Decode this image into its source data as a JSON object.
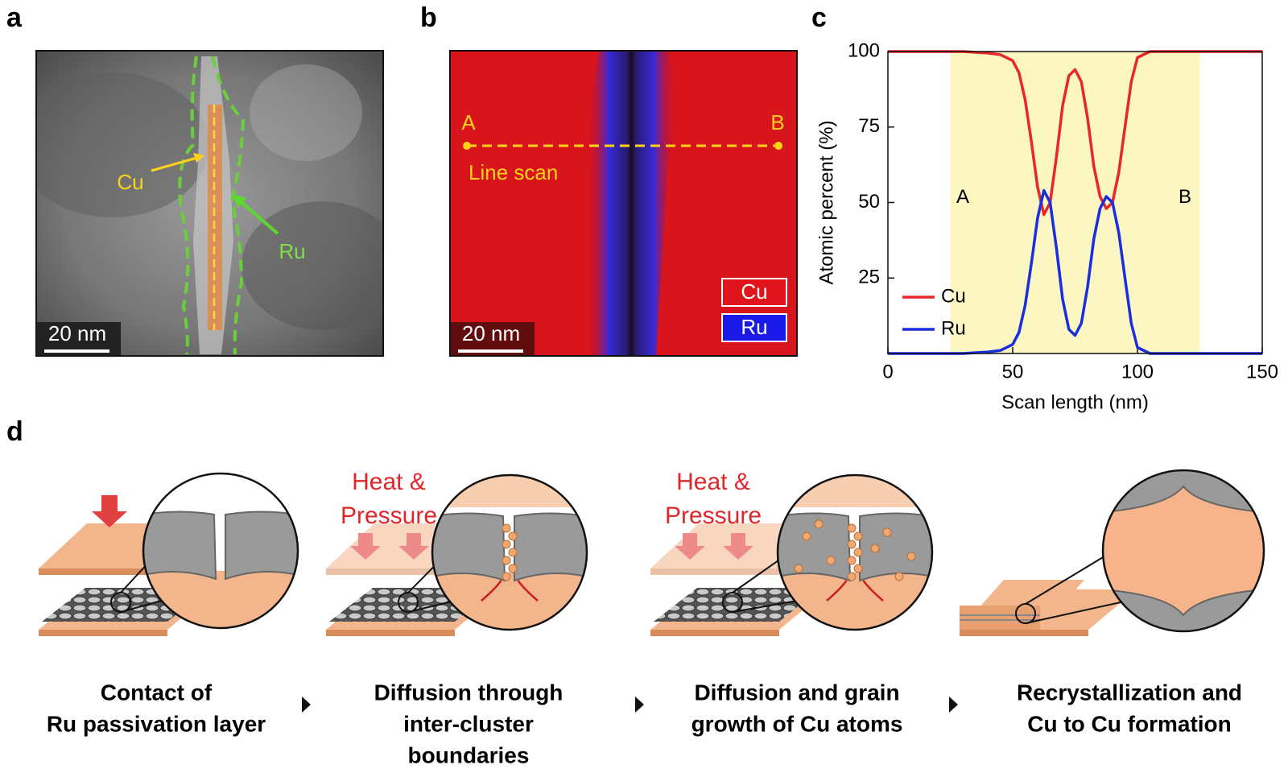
{
  "panels": {
    "a": {
      "label": "a",
      "cu_label": "Cu",
      "ru_label": "Ru",
      "scale_bar": "20 nm"
    },
    "b": {
      "label": "b",
      "point_a": "A",
      "point_b": "B",
      "line_label": "Line scan",
      "legend": [
        "Cu",
        "Ru"
      ],
      "scale_bar": "20 nm"
    },
    "c": {
      "label": "c"
    },
    "d": {
      "label": "d",
      "steps": [
        {
          "caption": [
            "Contact of",
            "Ru passivation layer"
          ]
        },
        {
          "heading": [
            "Heat &",
            "Pressure"
          ],
          "caption": [
            "Diffusion through",
            "inter-cluster",
            "boundaries"
          ]
        },
        {
          "heading": [
            "Heat &",
            "Pressure"
          ],
          "caption": [
            "Diffusion and grain",
            "growth of Cu atoms"
          ]
        },
        {
          "caption": [
            "Recrystallization and",
            "Cu to Cu formation"
          ]
        }
      ]
    }
  },
  "chart_data": {
    "type": "line",
    "x_label": "Scan length (nm)",
    "y_label": "Atomic percent (%)",
    "x": [
      0,
      10,
      20,
      30,
      40,
      45,
      50,
      52.5,
      55,
      57.5,
      60,
      62.5,
      65,
      67.5,
      70,
      72.5,
      75,
      77.5,
      80,
      82.5,
      85,
      87.5,
      90,
      92.5,
      95,
      97.5,
      100,
      105,
      110,
      120,
      130,
      140,
      150
    ],
    "series": [
      {
        "name": "Cu",
        "color": "#e8262b",
        "values": [
          100,
          100,
          100,
          100,
          99.5,
          99,
          97,
          93,
          84,
          70,
          55,
          46,
          50,
          65,
          82,
          92,
          94,
          90,
          78,
          62,
          52,
          48,
          50,
          60,
          75,
          90,
          98,
          100,
          100,
          100,
          100,
          100,
          100
        ]
      },
      {
        "name": "Ru",
        "color": "#1a2ee0",
        "values": [
          0,
          0,
          0,
          0,
          0.5,
          1,
          3,
          7,
          16,
          30,
          45,
          54,
          50,
          35,
          18,
          8,
          6,
          10,
          22,
          38,
          48,
          52,
          50,
          40,
          25,
          10,
          2,
          0,
          0,
          0,
          0,
          0,
          0
        ]
      }
    ],
    "xlim": [
      0,
      150
    ],
    "ylim": [
      0,
      100
    ],
    "xticks": [
      0,
      50,
      100,
      150
    ],
    "yticks": [
      25,
      50,
      75,
      100
    ],
    "highlight": {
      "xlim": [
        25,
        125
      ],
      "color": "#fbf6c2"
    },
    "annotations": [
      "A",
      "B"
    ],
    "legend": "lower left"
  }
}
